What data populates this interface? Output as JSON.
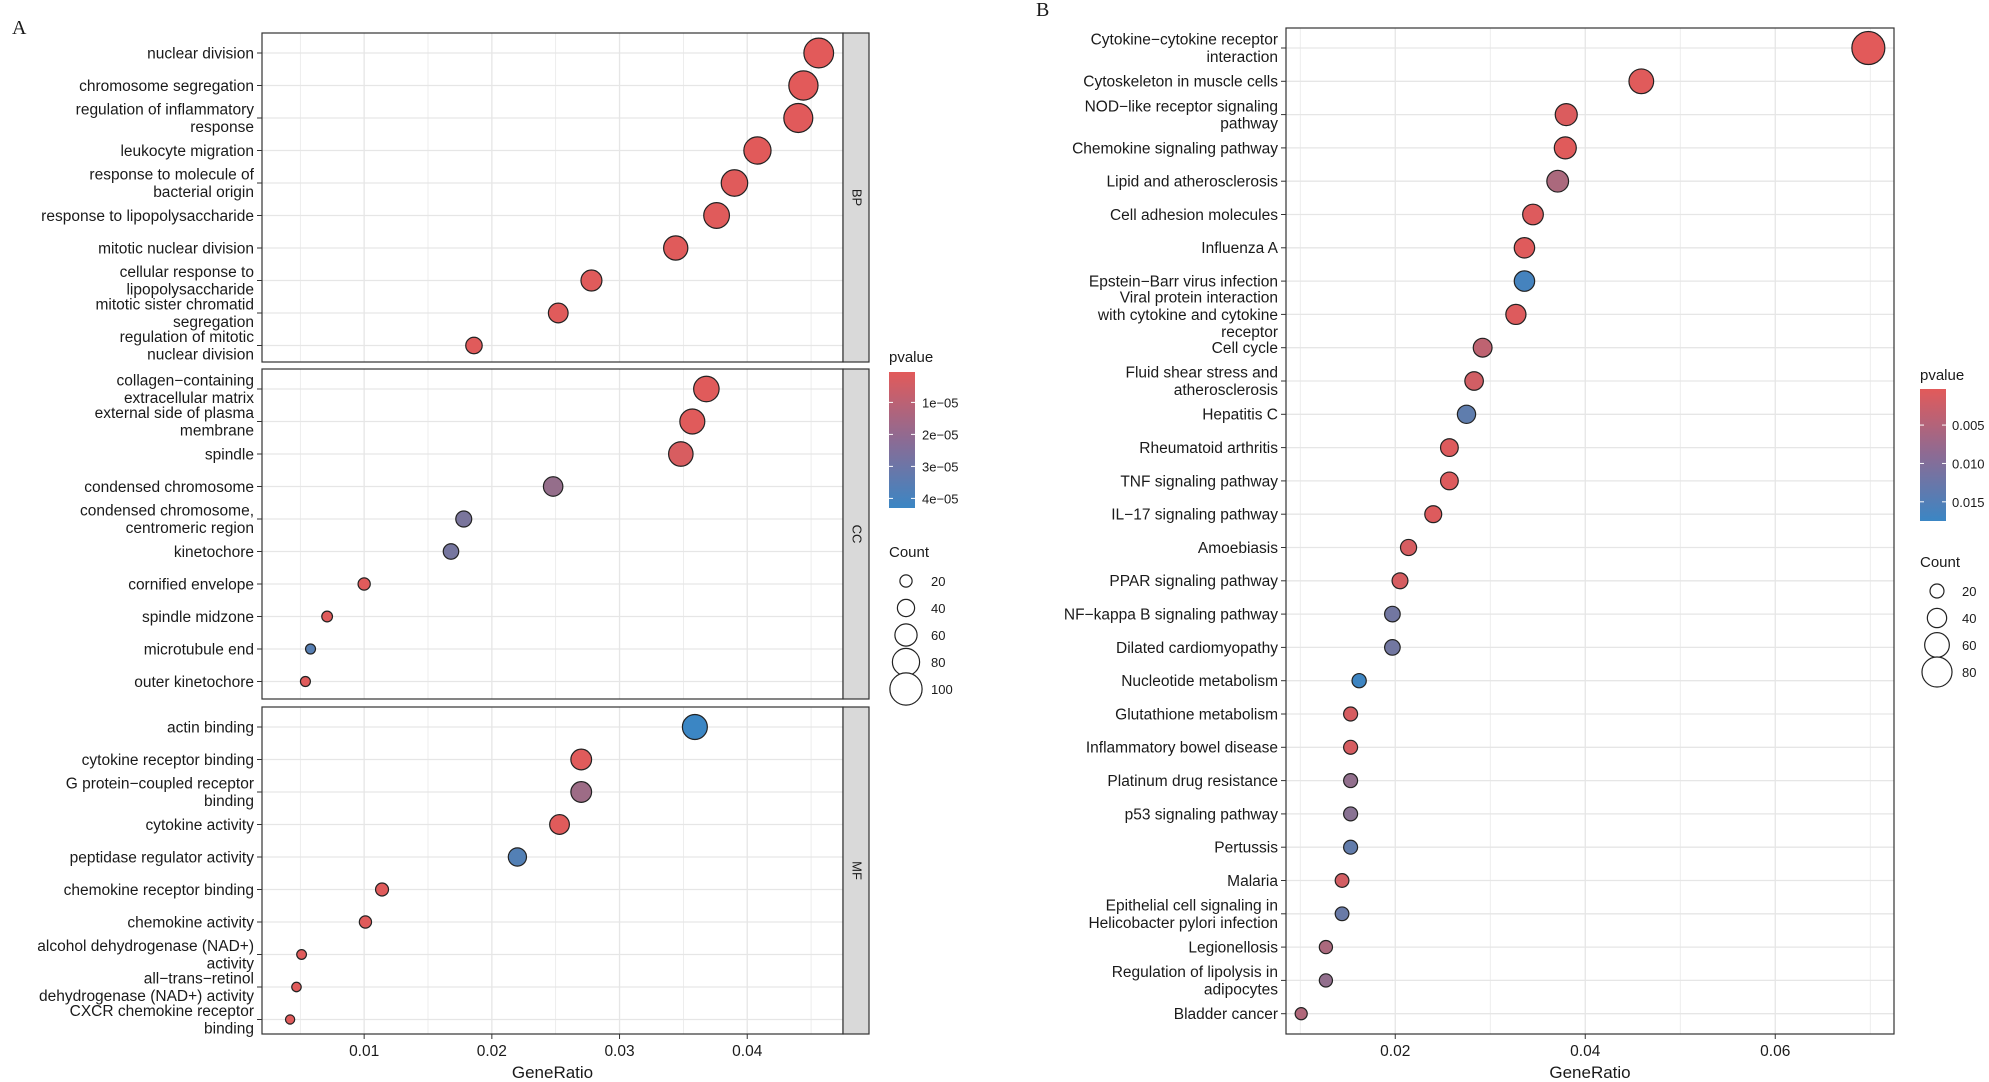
{
  "chart_data": [
    {
      "panel": "A",
      "type": "scatter",
      "xlabel": "GeneRatio",
      "xlim": [
        0.002,
        0.0475
      ],
      "xticks": [
        0.01,
        0.02,
        0.03,
        0.04
      ],
      "xtick_labels": [
        "0.01",
        "0.02",
        "0.03",
        "0.04"
      ],
      "legend_position": "right",
      "legend": {
        "color_title": "pvalue",
        "color_ticks": [
          1e-05,
          2e-05,
          3e-05,
          4e-05
        ],
        "color_tick_labels": [
          "1e−05",
          "2e−05",
          "3e−05",
          "4e−05"
        ],
        "color_range": [
          5e-07,
          4.3e-05
        ],
        "size_title": "Count",
        "size_values": [
          20,
          40,
          60,
          80,
          100
        ],
        "size_labels": [
          "20",
          "40",
          "60",
          "80",
          "100"
        ]
      },
      "facets": [
        {
          "name": "BP",
          "terms": [
            {
              "label": [
                "nuclear division"
              ],
              "x": 0.0456,
              "count": 90,
              "p": 5e-07
            },
            {
              "label": [
                "chromosome segregation"
              ],
              "x": 0.0444,
              "count": 88,
              "p": 6e-07
            },
            {
              "label": [
                "regulation of inflammatory",
                "response"
              ],
              "x": 0.044,
              "count": 87,
              "p": 8e-07
            },
            {
              "label": [
                "leukocyte migration"
              ],
              "x": 0.0408,
              "count": 80,
              "p": 7e-07
            },
            {
              "label": [
                "response to molecule of",
                "bacterial origin"
              ],
              "x": 0.039,
              "count": 77,
              "p": 1e-06
            },
            {
              "label": [
                "response to lipopolysaccharide"
              ],
              "x": 0.0376,
              "count": 74,
              "p": 1e-06
            },
            {
              "label": [
                "mitotic nuclear division"
              ],
              "x": 0.0344,
              "count": 68,
              "p": 1e-06
            },
            {
              "label": [
                "cellular response to",
                "lipopolysaccharide"
              ],
              "x": 0.0278,
              "count": 55,
              "p": 1e-06
            },
            {
              "label": [
                "mitotic sister chromatid",
                "segregation"
              ],
              "x": 0.0252,
              "count": 50,
              "p": 1e-06
            },
            {
              "label": [
                "regulation of mitotic",
                "nuclear division"
              ],
              "x": 0.0186,
              "count": 37,
              "p": 1e-06
            }
          ]
        },
        {
          "name": "CC",
          "terms": [
            {
              "label": [
                "collagen−containing",
                "extracellular matrix"
              ],
              "x": 0.0368,
              "count": 73,
              "p": 1e-06
            },
            {
              "label": [
                "external side of plasma",
                "membrane"
              ],
              "x": 0.0357,
              "count": 71,
              "p": 1e-06
            },
            {
              "label": [
                "spindle"
              ],
              "x": 0.0348,
              "count": 69,
              "p": 3e-06
            },
            {
              "label": [
                "condensed chromosome"
              ],
              "x": 0.0248,
              "count": 49,
              "p": 2e-05
            },
            {
              "label": [
                "condensed chromosome,",
                "centromeric region"
              ],
              "x": 0.0178,
              "count": 35,
              "p": 2.7e-05
            },
            {
              "label": [
                "kinetochore"
              ],
              "x": 0.0168,
              "count": 33,
              "p": 2.8e-05
            },
            {
              "label": [
                "cornified envelope"
              ],
              "x": 0.01,
              "count": 20,
              "p": 1e-06
            },
            {
              "label": [
                "spindle midzone"
              ],
              "x": 0.0071,
              "count": 14,
              "p": 1e-06
            },
            {
              "label": [
                "microtubule end"
              ],
              "x": 0.0058,
              "count": 11,
              "p": 3.6e-05
            },
            {
              "label": [
                "outer kinetochore"
              ],
              "x": 0.0054,
              "count": 11,
              "p": 1e-06
            }
          ]
        },
        {
          "name": "MF",
          "terms": [
            {
              "label": [
                "actin binding"
              ],
              "x": 0.0359,
              "count": 71,
              "p": 4.3e-05
            },
            {
              "label": [
                "cytokine receptor binding"
              ],
              "x": 0.027,
              "count": 54,
              "p": 1e-06
            },
            {
              "label": [
                "G protein−coupled receptor",
                "binding"
              ],
              "x": 0.027,
              "count": 54,
              "p": 1.8e-05
            },
            {
              "label": [
                "cytokine activity"
              ],
              "x": 0.0253,
              "count": 50,
              "p": 1e-06
            },
            {
              "label": [
                "peptidase regulator activity"
              ],
              "x": 0.022,
              "count": 44,
              "p": 3.7e-05
            },
            {
              "label": [
                "chemokine receptor binding"
              ],
              "x": 0.0114,
              "count": 23,
              "p": 1e-06
            },
            {
              "label": [
                "chemokine activity"
              ],
              "x": 0.0101,
              "count": 20,
              "p": 1e-06
            },
            {
              "label": [
                "alcohol dehydrogenase (NAD+)",
                "activity"
              ],
              "x": 0.0051,
              "count": 10,
              "p": 1e-06
            },
            {
              "label": [
                "all−trans−retinol",
                "dehydrogenase (NAD+) activity"
              ],
              "x": 0.0047,
              "count": 9,
              "p": 1e-06
            },
            {
              "label": [
                "CXCR chemokine receptor",
                "binding"
              ],
              "x": 0.0042,
              "count": 8,
              "p": 1e-06
            }
          ]
        }
      ]
    },
    {
      "panel": "B",
      "type": "scatter",
      "xlabel": "GeneRatio",
      "xlim": [
        0.0085,
        0.0725
      ],
      "xticks": [
        0.02,
        0.04,
        0.06
      ],
      "xtick_labels": [
        "0.02",
        "0.04",
        "0.06"
      ],
      "legend_position": "right",
      "legend": {
        "color_title": "pvalue",
        "color_ticks": [
          0.005,
          0.01,
          0.015
        ],
        "color_tick_labels": [
          "0.005",
          "0.010",
          "0.015"
        ],
        "color_range": [
          0.0003,
          0.0175
        ],
        "size_title": "Count",
        "size_values": [
          20,
          40,
          60,
          80
        ],
        "size_labels": [
          "20",
          "40",
          "60",
          "80"
        ]
      },
      "terms": [
        {
          "label": [
            "Cytokine−cytokine receptor",
            "interaction"
          ],
          "x": 0.0698,
          "count": 91,
          "p": 0.0003
        },
        {
          "label": [
            "Cytoskeleton in muscle cells"
          ],
          "x": 0.0459,
          "count": 60,
          "p": 0.0005
        },
        {
          "label": [
            "NOD−like receptor signaling",
            "pathway"
          ],
          "x": 0.038,
          "count": 50,
          "p": 0.001
        },
        {
          "label": [
            "Chemokine signaling pathway"
          ],
          "x": 0.0379,
          "count": 50,
          "p": 0.0005
        },
        {
          "label": [
            "Lipid and atherosclerosis"
          ],
          "x": 0.0371,
          "count": 49,
          "p": 0.006
        },
        {
          "label": [
            "Cell adhesion molecules"
          ],
          "x": 0.0345,
          "count": 45,
          "p": 0.0008
        },
        {
          "label": [
            "Influenza A"
          ],
          "x": 0.0336,
          "count": 44,
          "p": 0.0006
        },
        {
          "label": [
            "Epstein−Barr virus infection"
          ],
          "x": 0.0336,
          "count": 44,
          "p": 0.0165
        },
        {
          "label": [
            "Viral protein interaction",
            "with cytokine and cytokine",
            "receptor"
          ],
          "x": 0.0327,
          "count": 43,
          "p": 0.0008
        },
        {
          "label": [
            "Cell cycle"
          ],
          "x": 0.0292,
          "count": 38,
          "p": 0.004
        },
        {
          "label": [
            "Fluid shear stress and",
            "atherosclerosis"
          ],
          "x": 0.0283,
          "count": 37,
          "p": 0.002
        },
        {
          "label": [
            "Hepatitis C"
          ],
          "x": 0.0275,
          "count": 36,
          "p": 0.0138
        },
        {
          "label": [
            "Rheumatoid arthritis"
          ],
          "x": 0.0257,
          "count": 34,
          "p": 0.0008
        },
        {
          "label": [
            "TNF signaling pathway"
          ],
          "x": 0.0257,
          "count": 34,
          "p": 0.0008
        },
        {
          "label": [
            "IL−17 signaling pathway"
          ],
          "x": 0.024,
          "count": 31,
          "p": 0.0008
        },
        {
          "label": [
            "Amoebiasis"
          ],
          "x": 0.0214,
          "count": 28,
          "p": 0.0015
        },
        {
          "label": [
            "PPAR signaling pathway"
          ],
          "x": 0.0205,
          "count": 27,
          "p": 0.0015
        },
        {
          "label": [
            "NF−kappa B signaling pathway"
          ],
          "x": 0.0197,
          "count": 26,
          "p": 0.0118
        },
        {
          "label": [
            "Dilated cardiomyopathy"
          ],
          "x": 0.0197,
          "count": 26,
          "p": 0.0118
        },
        {
          "label": [
            "Nucleotide metabolism"
          ],
          "x": 0.0162,
          "count": 21,
          "p": 0.0172
        },
        {
          "label": [
            "Glutathione metabolism"
          ],
          "x": 0.0153,
          "count": 20,
          "p": 0.0015
        },
        {
          "label": [
            "Inflammatory bowel disease"
          ],
          "x": 0.0153,
          "count": 20,
          "p": 0.0015
        },
        {
          "label": [
            "Platinum drug resistance"
          ],
          "x": 0.0153,
          "count": 20,
          "p": 0.0085
        },
        {
          "label": [
            "p53 signaling pathway"
          ],
          "x": 0.0153,
          "count": 20,
          "p": 0.0095
        },
        {
          "label": [
            "Pertussis"
          ],
          "x": 0.0153,
          "count": 20,
          "p": 0.0135
        },
        {
          "label": [
            "Malaria"
          ],
          "x": 0.0144,
          "count": 19,
          "p": 0.0018
        },
        {
          "label": [
            "Epithelial cell signaling in",
            "Helicobacter pylori infection"
          ],
          "x": 0.0144,
          "count": 19,
          "p": 0.0128
        },
        {
          "label": [
            "Legionellosis"
          ],
          "x": 0.0127,
          "count": 17,
          "p": 0.006
        },
        {
          "label": [
            "Regulation of lipolysis in",
            "adipocytes"
          ],
          "x": 0.0127,
          "count": 17,
          "p": 0.0085
        },
        {
          "label": [
            "Bladder cancer"
          ],
          "x": 0.0101,
          "count": 13,
          "p": 0.0055
        }
      ]
    }
  ],
  "colors": {
    "low_p": "#e25a5a",
    "high_p": "#3b86c4",
    "grid": "#e6e6e6",
    "strip": "#d9d9d9",
    "text": "#1a1a1a"
  }
}
